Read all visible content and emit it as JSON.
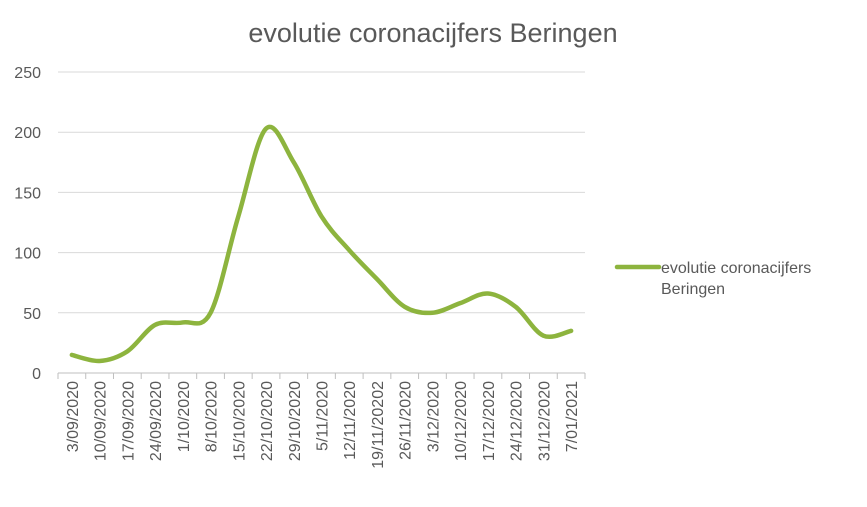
{
  "chart_data": {
    "type": "line",
    "title": "evolutie coronacijfers Beringen",
    "xlabel": "",
    "ylabel": "",
    "categories": [
      "3/09/2020",
      "10/09/2020",
      "17/09/2020",
      "24/09/2020",
      "1/10/2020",
      "8/10/2020",
      "15/10/2020",
      "22/10/2020",
      "29/10/2020",
      "5/11/2020",
      "12/11/2020",
      "19/11/20202",
      "26/11/2020",
      "3/12/2020",
      "10/12/2020",
      "17/12/2020",
      "24/12/2020",
      "31/12/2020",
      "7/01/2021"
    ],
    "series": [
      {
        "name": "evolutie coronacijfers Beringen",
        "color": "#8db43e",
        "values": [
          15,
          10,
          18,
          40,
          42,
          50,
          130,
          203,
          175,
          130,
          102,
          78,
          55,
          50,
          58,
          66,
          55,
          31,
          35
        ]
      }
    ],
    "yticks": [
      "0",
      "50",
      "100",
      "150",
      "200",
      "250"
    ],
    "ylim": [
      0,
      250
    ],
    "grid": true,
    "legend_position": "right",
    "legend_lines": [
      "evolutie coronacijfers",
      "Beringen"
    ]
  }
}
